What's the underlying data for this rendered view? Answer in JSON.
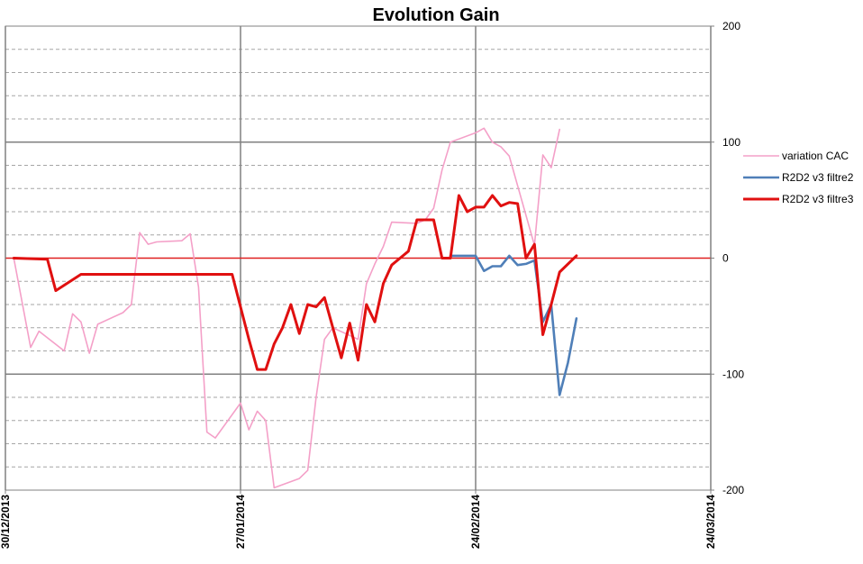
{
  "chart_data": {
    "type": "line",
    "title": "Evolution Gain",
    "xlabel": "",
    "ylabel": "",
    "x_ticks": [
      "30/12/2013",
      "27/01/2014",
      "24/02/2014",
      "24/03/2014"
    ],
    "x_range": [
      "30/12/2013",
      "24/03/2014"
    ],
    "y_ticks": [
      "200",
      "100",
      "0",
      "-100",
      "-200"
    ],
    "ylim": [
      -200,
      200
    ],
    "y_axis_side": "right",
    "grid": "major and minor horizontal dashed, vertical solid at tick dates",
    "zero_line_color": "#e02020",
    "legend_position": "right",
    "series": [
      {
        "name": "variation CAC",
        "color": "#f4a0c8",
        "x": [
          "31/12/2013",
          "02/01/2014",
          "03/01/2014",
          "06/01/2014",
          "07/01/2014",
          "08/01/2014",
          "09/01/2014",
          "10/01/2014",
          "13/01/2014",
          "14/01/2014",
          "15/01/2014",
          "16/01/2014",
          "17/01/2014",
          "20/01/2014",
          "21/01/2014",
          "22/01/2014",
          "23/01/2014",
          "24/01/2014",
          "27/01/2014",
          "28/01/2014",
          "29/01/2014",
          "30/01/2014",
          "31/01/2014",
          "03/02/2014",
          "04/02/2014",
          "05/02/2014",
          "06/02/2014",
          "07/02/2014",
          "10/02/2014",
          "11/02/2014",
          "12/02/2014",
          "13/02/2014",
          "14/02/2014",
          "17/02/2014",
          "18/02/2014",
          "19/02/2014",
          "20/02/2014",
          "21/02/2014",
          "24/02/2014",
          "25/02/2014",
          "26/02/2014",
          "27/02/2014",
          "28/02/2014",
          "03/03/2014",
          "04/03/2014",
          "05/03/2014",
          "06/03/2014"
        ],
        "values": [
          0,
          -77,
          -63,
          -80,
          -48,
          -55,
          -82,
          -57,
          -47,
          -40,
          22,
          12,
          14,
          15,
          21,
          -25,
          -150,
          -155,
          -125,
          -148,
          -132,
          -140,
          -198,
          -190,
          -183,
          -120,
          -70,
          -60,
          -70,
          -22,
          -5,
          10,
          31,
          30,
          33,
          43,
          76,
          100,
          108,
          112,
          100,
          96,
          88,
          11,
          89,
          78,
          111
        ]
      },
      {
        "name": "R2D2 v3 filtre2",
        "color": "#4f7fb8",
        "x": [
          "21/02/2014",
          "24/02/2014",
          "25/02/2014",
          "26/02/2014",
          "27/02/2014",
          "28/02/2014",
          "01/03/2014",
          "02/03/2014",
          "03/03/2014",
          "04/03/2014",
          "05/03/2014",
          "06/03/2014",
          "07/03/2014",
          "08/03/2014"
        ],
        "values": [
          2,
          2,
          -11,
          -7,
          -7,
          2,
          -6,
          -5,
          -2,
          -55,
          -40,
          -118,
          -90,
          -52
        ]
      },
      {
        "name": "R2D2 v3 filtre3",
        "color": "#e01010",
        "x": [
          "31/12/2013",
          "04/01/2014",
          "05/01/2014",
          "08/01/2014",
          "26/01/2014",
          "27/01/2014",
          "28/01/2014",
          "29/01/2014",
          "30/01/2014",
          "31/01/2014",
          "01/02/2014",
          "02/02/2014",
          "03/02/2014",
          "04/02/2014",
          "05/02/2014",
          "06/02/2014",
          "07/02/2014",
          "08/02/2014",
          "09/02/2014",
          "10/02/2014",
          "11/02/2014",
          "12/02/2014",
          "13/02/2014",
          "14/02/2014",
          "15/02/2014",
          "16/02/2014",
          "17/02/2014",
          "18/02/2014",
          "19/02/2014",
          "20/02/2014",
          "21/02/2014",
          "22/02/2014",
          "23/02/2014",
          "24/02/2014",
          "25/02/2014",
          "26/02/2014",
          "27/02/2014",
          "28/02/2014",
          "01/03/2014",
          "02/03/2014",
          "03/03/2014",
          "04/03/2014",
          "05/03/2014",
          "06/03/2014",
          "08/03/2014"
        ],
        "values": [
          0,
          -1,
          -28,
          -14,
          -14,
          -42,
          -70,
          -96,
          -96,
          -74,
          -60,
          -40,
          -65,
          -40,
          -42,
          -34,
          -60,
          -86,
          -56,
          -88,
          -40,
          -55,
          -22,
          -6,
          0,
          6,
          33,
          33,
          33,
          0,
          0,
          54,
          40,
          44,
          44,
          54,
          45,
          48,
          47,
          0,
          12,
          -66,
          -40,
          -12,
          2
        ]
      }
    ]
  }
}
